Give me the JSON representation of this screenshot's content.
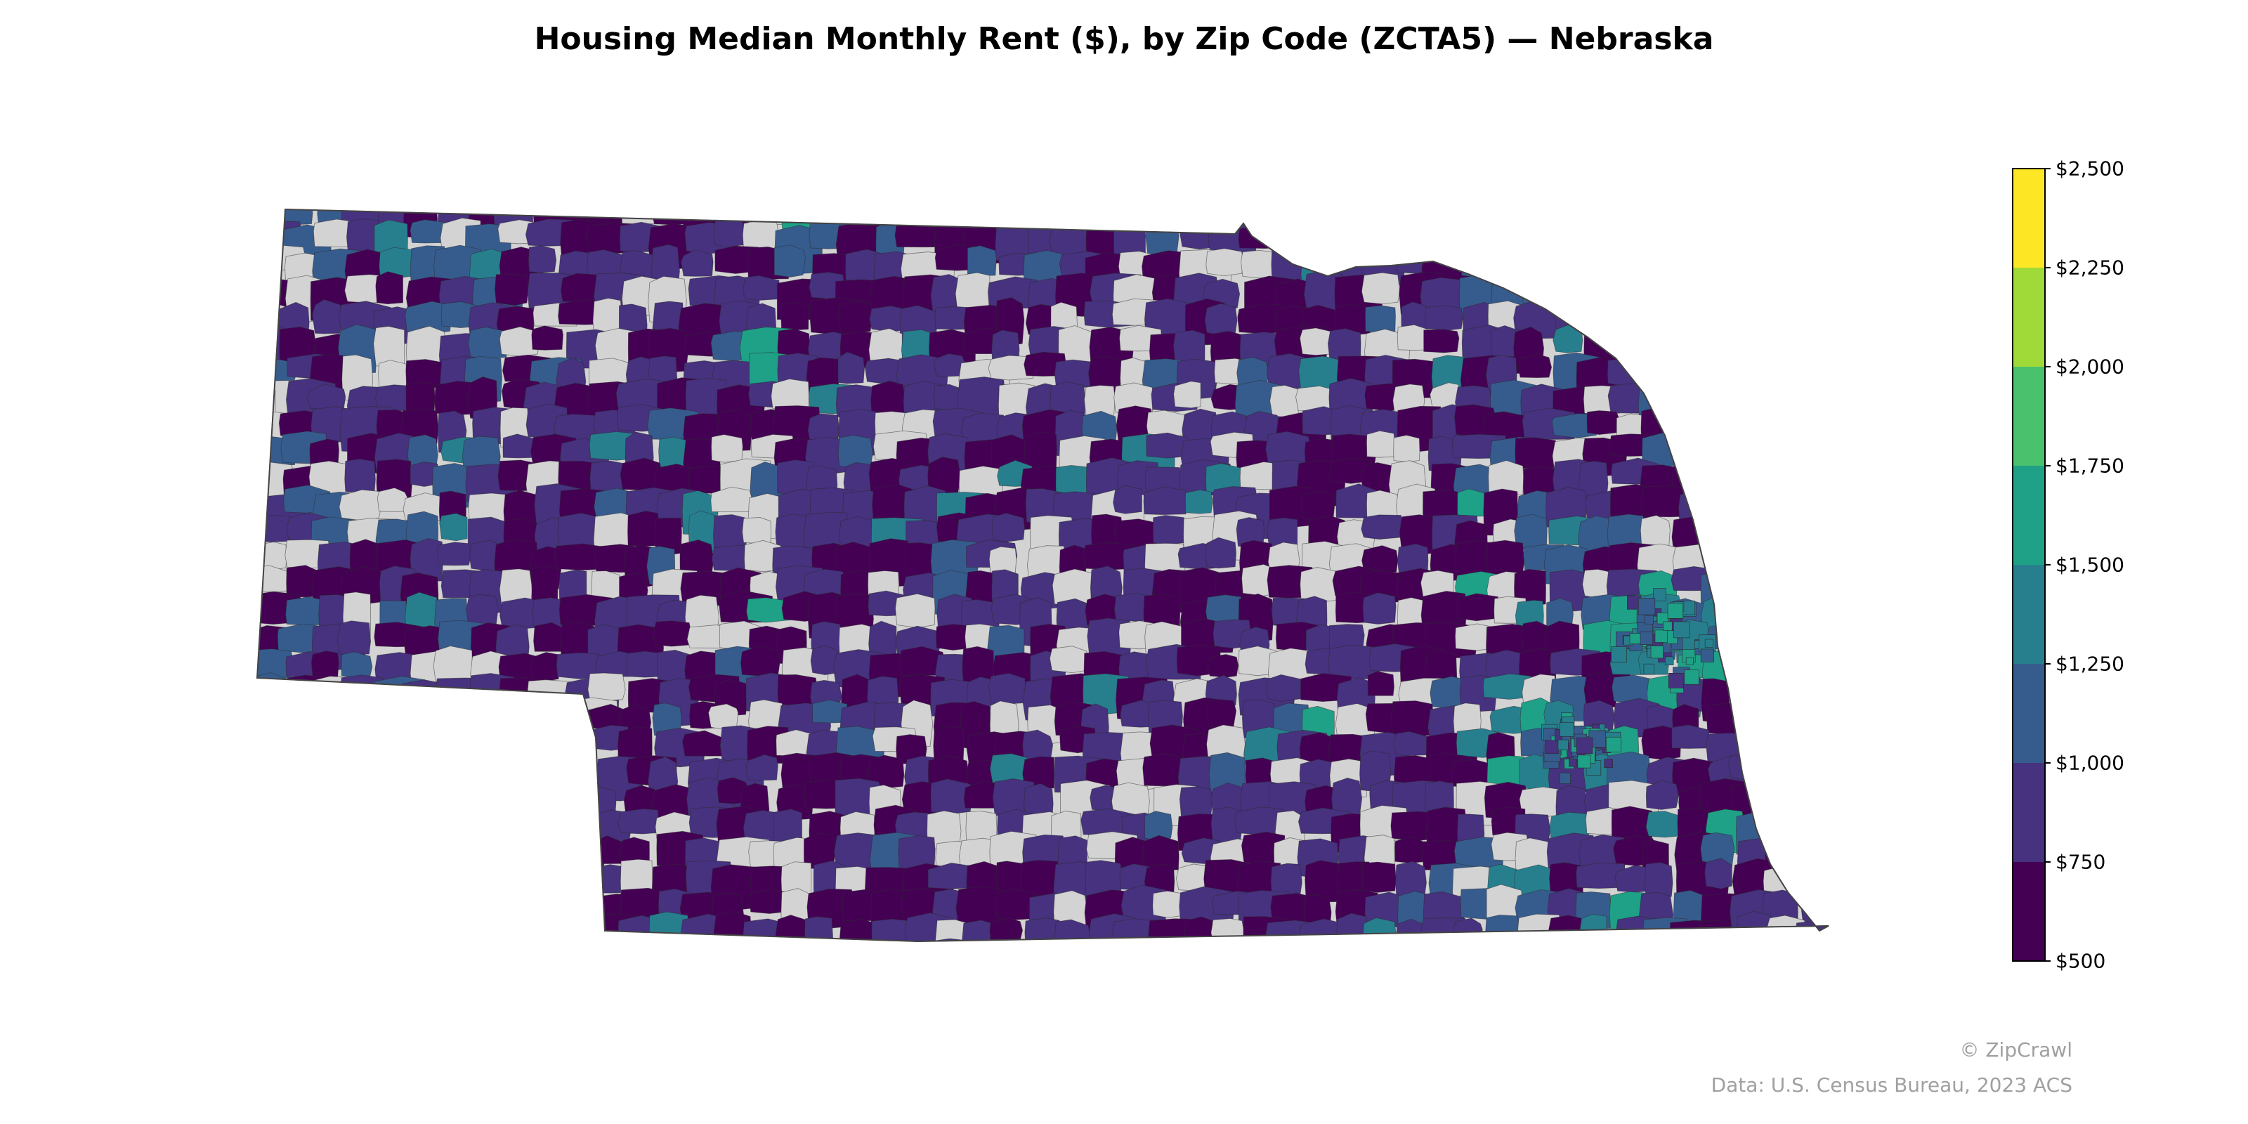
{
  "title": "Housing Median Monthly Rent ($), by Zip Code (ZCTA5) — Nebraska",
  "legend": {
    "ticks": [
      "$500",
      "$750",
      "$1,000",
      "$1,250",
      "$1,500",
      "$1,750",
      "$2,000",
      "$2,250",
      "$2,500"
    ],
    "bins": [
      {
        "min": 500,
        "max": 750,
        "color": "#440154"
      },
      {
        "min": 750,
        "max": 1000,
        "color": "#46327e"
      },
      {
        "min": 1000,
        "max": 1250,
        "color": "#365c8d"
      },
      {
        "min": 1250,
        "max": 1500,
        "color": "#277f8e"
      },
      {
        "min": 1500,
        "max": 1750,
        "color": "#1fa187"
      },
      {
        "min": 1750,
        "max": 2000,
        "color": "#4ac16d"
      },
      {
        "min": 2000,
        "max": 2250,
        "color": "#a0da39"
      },
      {
        "min": 2250,
        "max": 2500,
        "color": "#fde725"
      }
    ],
    "no_data_color": "#d3d3d3"
  },
  "credits": {
    "copyright": "© ZipCrawl",
    "source": "Data: U.S. Census Bureau, 2023 ACS"
  }
}
